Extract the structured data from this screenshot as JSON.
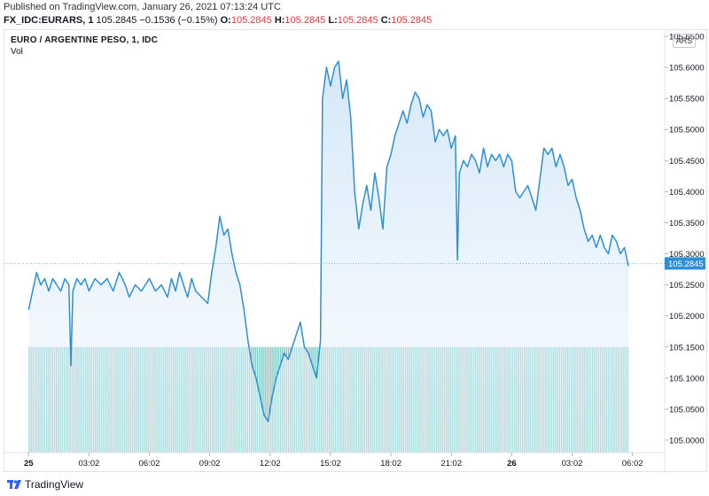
{
  "header": {
    "published": "Published on TradingView.com, January 26, 2021 07:13:24 UTC",
    "symbol": "FX_IDC:EURARS, 1",
    "last": "105.2845",
    "change": "−0.1536 (−0.15%)",
    "o_label": "O:",
    "o_value": "105.2845",
    "h_label": "H:",
    "h_value": "105.2845",
    "l_label": "L:",
    "l_value": "105.2845",
    "c_label": "C:",
    "c_value": "105.2845"
  },
  "chart_title": "EURO / ARGENTINE PESO, 1, IDC",
  "volume_label": "Vol",
  "currency_badge": "ARS",
  "last_price_label": "105.2845",
  "footer_brand": "TradingView",
  "colors": {
    "line": "#2e8fd8",
    "area_top": "#cfe5f7",
    "volume": "#7fc8c2",
    "price_tag_bg": "#2e8fd8",
    "negative": "#e5383b"
  },
  "chart_data": {
    "type": "area",
    "title": "EURO / ARGENTINE PESO, 1, IDC",
    "ylim": [
      104.98,
      105.66
    ],
    "y_ticks": [
      "105.6500",
      "105.6000",
      "105.5500",
      "105.5000",
      "105.4500",
      "105.4000",
      "105.3500",
      "105.3000",
      "105.2500",
      "105.2000",
      "105.1500",
      "105.1000",
      "105.0500",
      "105.0000"
    ],
    "x_ticks": [
      "25",
      "03:02",
      "06:02",
      "09:02",
      "12:02",
      "15:02",
      "18:02",
      "21:02",
      "26",
      "03:02",
      "06:02"
    ],
    "x_range_hours": [
      -1.2,
      31.6
    ],
    "series": [
      {
        "type": "line",
        "points": [
          [
            0.0,
            105.21
          ],
          [
            0.2,
            105.24
          ],
          [
            0.4,
            105.27
          ],
          [
            0.6,
            105.25
          ],
          [
            0.8,
            105.26
          ],
          [
            1.0,
            105.24
          ],
          [
            1.2,
            105.26
          ],
          [
            1.4,
            105.25
          ],
          [
            1.6,
            105.24
          ],
          [
            1.8,
            105.26
          ],
          [
            2.0,
            105.25
          ],
          [
            2.1,
            105.12
          ],
          [
            2.2,
            105.24
          ],
          [
            2.4,
            105.26
          ],
          [
            2.6,
            105.25
          ],
          [
            2.8,
            105.26
          ],
          [
            3.0,
            105.24
          ],
          [
            3.3,
            105.26
          ],
          [
            3.6,
            105.25
          ],
          [
            3.9,
            105.26
          ],
          [
            4.2,
            105.24
          ],
          [
            4.5,
            105.27
          ],
          [
            4.8,
            105.25
          ],
          [
            5.0,
            105.23
          ],
          [
            5.3,
            105.25
          ],
          [
            5.6,
            105.24
          ],
          [
            6.0,
            105.26
          ],
          [
            6.3,
            105.24
          ],
          [
            6.6,
            105.25
          ],
          [
            6.9,
            105.23
          ],
          [
            7.1,
            105.26
          ],
          [
            7.3,
            105.24
          ],
          [
            7.5,
            105.27
          ],
          [
            7.7,
            105.25
          ],
          [
            7.9,
            105.23
          ],
          [
            8.1,
            105.26
          ],
          [
            8.3,
            105.24
          ],
          [
            8.6,
            105.23
          ],
          [
            8.9,
            105.22
          ],
          [
            9.1,
            105.27
          ],
          [
            9.3,
            105.31
          ],
          [
            9.5,
            105.36
          ],
          [
            9.7,
            105.33
          ],
          [
            9.9,
            105.34
          ],
          [
            10.1,
            105.3
          ],
          [
            10.3,
            105.27
          ],
          [
            10.5,
            105.25
          ],
          [
            10.7,
            105.21
          ],
          [
            10.9,
            105.16
          ],
          [
            11.1,
            105.12
          ],
          [
            11.3,
            105.1
          ],
          [
            11.5,
            105.07
          ],
          [
            11.7,
            105.04
          ],
          [
            11.9,
            105.03
          ],
          [
            12.1,
            105.07
          ],
          [
            12.3,
            105.1
          ],
          [
            12.5,
            105.12
          ],
          [
            12.7,
            105.14
          ],
          [
            12.9,
            105.13
          ],
          [
            13.1,
            105.15
          ],
          [
            13.3,
            105.17
          ],
          [
            13.5,
            105.19
          ],
          [
            13.7,
            105.15
          ],
          [
            13.9,
            105.14
          ],
          [
            14.1,
            105.12
          ],
          [
            14.3,
            105.1
          ],
          [
            14.5,
            105.16
          ],
          [
            14.6,
            105.55
          ],
          [
            14.8,
            105.6
          ],
          [
            15.0,
            105.57
          ],
          [
            15.2,
            105.6
          ],
          [
            15.4,
            105.61
          ],
          [
            15.6,
            105.55
          ],
          [
            15.8,
            105.58
          ],
          [
            16.0,
            105.52
          ],
          [
            16.2,
            105.4
          ],
          [
            16.4,
            105.34
          ],
          [
            16.6,
            105.38
          ],
          [
            16.8,
            105.41
          ],
          [
            17.0,
            105.37
          ],
          [
            17.2,
            105.43
          ],
          [
            17.4,
            105.39
          ],
          [
            17.6,
            105.34
          ],
          [
            17.8,
            105.44
          ],
          [
            18.0,
            105.46
          ],
          [
            18.2,
            105.49
          ],
          [
            18.4,
            105.51
          ],
          [
            18.6,
            105.53
          ],
          [
            18.8,
            105.51
          ],
          [
            19.0,
            105.54
          ],
          [
            19.2,
            105.56
          ],
          [
            19.4,
            105.55
          ],
          [
            19.6,
            105.52
          ],
          [
            19.8,
            105.54
          ],
          [
            20.0,
            105.53
          ],
          [
            20.2,
            105.48
          ],
          [
            20.4,
            105.5
          ],
          [
            20.6,
            105.49
          ],
          [
            20.8,
            105.5
          ],
          [
            21.0,
            105.47
          ],
          [
            21.2,
            105.49
          ],
          [
            21.3,
            105.29
          ],
          [
            21.4,
            105.43
          ],
          [
            21.6,
            105.45
          ],
          [
            21.8,
            105.44
          ],
          [
            22.0,
            105.46
          ],
          [
            22.2,
            105.45
          ],
          [
            22.4,
            105.43
          ],
          [
            22.6,
            105.47
          ],
          [
            22.8,
            105.44
          ],
          [
            23.0,
            105.46
          ],
          [
            23.2,
            105.45
          ],
          [
            23.4,
            105.46
          ],
          [
            23.6,
            105.44
          ],
          [
            23.8,
            105.46
          ],
          [
            24.0,
            105.45
          ],
          [
            24.2,
            105.4
          ],
          [
            24.4,
            105.39
          ],
          [
            24.6,
            105.4
          ],
          [
            24.8,
            105.41
          ],
          [
            25.0,
            105.39
          ],
          [
            25.2,
            105.37
          ],
          [
            25.4,
            105.42
          ],
          [
            25.6,
            105.47
          ],
          [
            25.8,
            105.46
          ],
          [
            26.0,
            105.47
          ],
          [
            26.2,
            105.44
          ],
          [
            26.4,
            105.46
          ],
          [
            26.6,
            105.44
          ],
          [
            26.8,
            105.41
          ],
          [
            27.0,
            105.42
          ],
          [
            27.2,
            105.39
          ],
          [
            27.4,
            105.37
          ],
          [
            27.6,
            105.34
          ],
          [
            27.8,
            105.32
          ],
          [
            28.0,
            105.33
          ],
          [
            28.2,
            105.31
          ],
          [
            28.4,
            105.33
          ],
          [
            28.6,
            105.31
          ],
          [
            28.8,
            105.3
          ],
          [
            29.0,
            105.33
          ],
          [
            29.2,
            105.32
          ],
          [
            29.4,
            105.3
          ],
          [
            29.6,
            105.31
          ],
          [
            29.8,
            105.28
          ]
        ]
      }
    ],
    "volume": {
      "level": 105.15
    },
    "last_value": 105.2845
  }
}
